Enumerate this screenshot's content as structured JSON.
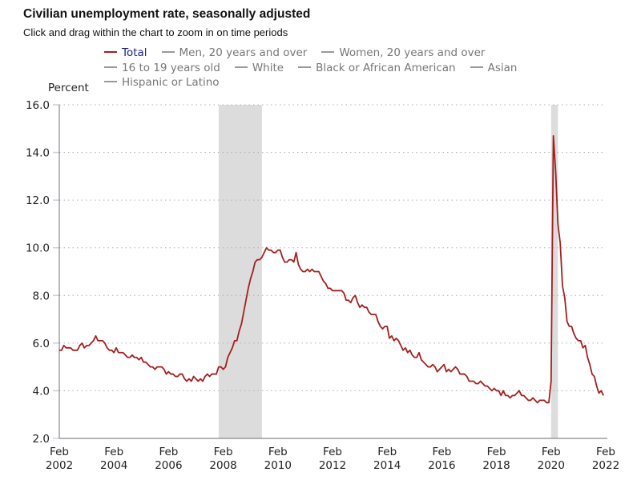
{
  "header": {
    "title": "Civilian unemployment rate, seasonally adjusted",
    "subtitle": "Click and drag within the chart to zoom in on time periods"
  },
  "legend": {
    "rows": [
      [
        {
          "label": "Total",
          "active": true
        },
        {
          "label": "Men, 20 years and over",
          "active": false
        },
        {
          "label": "Women, 20 years and over",
          "active": false
        }
      ],
      [
        {
          "label": "16 to 19 years old",
          "active": false
        },
        {
          "label": "White",
          "active": false
        },
        {
          "label": "Black or African American",
          "active": false
        },
        {
          "label": "Asian",
          "active": false
        }
      ],
      [
        {
          "label": "Hispanic or Latino",
          "active": false
        }
      ]
    ]
  },
  "colors": {
    "series": "#a31f1f",
    "legend_active_text": "#1a237e",
    "legend_inactive": "#999999",
    "recession": "#dcdcdc",
    "grid": "#b0b0b0",
    "axis": "#888888"
  },
  "chart_data": {
    "type": "line",
    "title": "Civilian unemployment rate, seasonally adjusted",
    "subtitle": "Click and drag within the chart to zoom in on time periods",
    "ylabel": "Percent",
    "xlabel": "",
    "ylim": [
      2.0,
      16.0
    ],
    "yticks": [
      "2.0",
      "4.0",
      "6.0",
      "8.0",
      "10.0",
      "12.0",
      "14.0",
      "16.0"
    ],
    "xticks": [
      {
        "month": "Feb",
        "year": "2002"
      },
      {
        "month": "Feb",
        "year": "2004"
      },
      {
        "month": "Feb",
        "year": "2006"
      },
      {
        "month": "Feb",
        "year": "2008"
      },
      {
        "month": "Feb",
        "year": "2010"
      },
      {
        "month": "Feb",
        "year": "2012"
      },
      {
        "month": "Feb",
        "year": "2014"
      },
      {
        "month": "Feb",
        "year": "2016"
      },
      {
        "month": "Feb",
        "year": "2018"
      },
      {
        "month": "Feb",
        "year": "2020"
      },
      {
        "month": "Feb",
        "year": "2022"
      }
    ],
    "xrange": [
      "2002-02",
      "2022-02"
    ],
    "grid": true,
    "recessions": [
      {
        "start": "2007-12",
        "end": "2009-06"
      },
      {
        "start": "2020-02",
        "end": "2020-04"
      }
    ],
    "series": [
      {
        "name": "Total",
        "start": "2002-02",
        "frequency": "monthly",
        "values": [
          5.7,
          5.7,
          5.9,
          5.8,
          5.8,
          5.8,
          5.7,
          5.7,
          5.7,
          5.9,
          6.0,
          5.8,
          5.9,
          5.9,
          6.0,
          6.1,
          6.3,
          6.1,
          6.1,
          6.1,
          6.0,
          5.8,
          5.7,
          5.7,
          5.6,
          5.8,
          5.6,
          5.6,
          5.6,
          5.5,
          5.4,
          5.4,
          5.5,
          5.4,
          5.4,
          5.3,
          5.4,
          5.2,
          5.2,
          5.1,
          5.0,
          5.0,
          4.9,
          5.0,
          5.0,
          5.0,
          4.9,
          4.7,
          4.8,
          4.7,
          4.7,
          4.6,
          4.6,
          4.7,
          4.7,
          4.5,
          4.4,
          4.5,
          4.4,
          4.6,
          4.5,
          4.4,
          4.5,
          4.4,
          4.6,
          4.7,
          4.6,
          4.7,
          4.7,
          4.7,
          5.0,
          5.0,
          4.9,
          5.0,
          5.4,
          5.6,
          5.8,
          6.1,
          6.1,
          6.5,
          6.8,
          7.3,
          7.8,
          8.3,
          8.7,
          9.0,
          9.4,
          9.5,
          9.5,
          9.6,
          9.8,
          10.0,
          9.9,
          9.9,
          9.8,
          9.8,
          9.9,
          9.9,
          9.6,
          9.4,
          9.4,
          9.5,
          9.5,
          9.4,
          9.8,
          9.3,
          9.1,
          9.0,
          9.0,
          9.1,
          9.0,
          9.1,
          9.0,
          9.0,
          9.0,
          8.8,
          8.6,
          8.5,
          8.3,
          8.3,
          8.2,
          8.2,
          8.2,
          8.2,
          8.2,
          8.1,
          7.8,
          7.8,
          7.7,
          7.9,
          8.0,
          7.7,
          7.5,
          7.6,
          7.5,
          7.5,
          7.3,
          7.2,
          7.2,
          7.2,
          6.9,
          6.7,
          6.6,
          6.7,
          6.7,
          6.2,
          6.3,
          6.1,
          6.2,
          6.1,
          5.9,
          5.7,
          5.8,
          5.6,
          5.7,
          5.5,
          5.4,
          5.4,
          5.6,
          5.3,
          5.2,
          5.1,
          5.0,
          5.0,
          5.1,
          5.0,
          4.8,
          4.9,
          5.0,
          5.1,
          4.8,
          4.9,
          4.8,
          4.9,
          5.0,
          4.9,
          4.7,
          4.7,
          4.7,
          4.6,
          4.4,
          4.4,
          4.4,
          4.3,
          4.3,
          4.4,
          4.3,
          4.2,
          4.2,
          4.1,
          4.0,
          4.1,
          4.0,
          4.0,
          3.8,
          4.0,
          3.8,
          3.8,
          3.7,
          3.8,
          3.8,
          3.9,
          4.0,
          3.8,
          3.8,
          3.7,
          3.6,
          3.6,
          3.7,
          3.6,
          3.5,
          3.6,
          3.6,
          3.6,
          3.5,
          3.5,
          4.4,
          14.7,
          13.2,
          11.0,
          10.2,
          8.4,
          7.9,
          6.9,
          6.7,
          6.7,
          6.4,
          6.2,
          6.1,
          6.1,
          5.8,
          5.9,
          5.4,
          5.1,
          4.7,
          4.6,
          4.2,
          3.9,
          4.0,
          3.8
        ]
      }
    ]
  }
}
